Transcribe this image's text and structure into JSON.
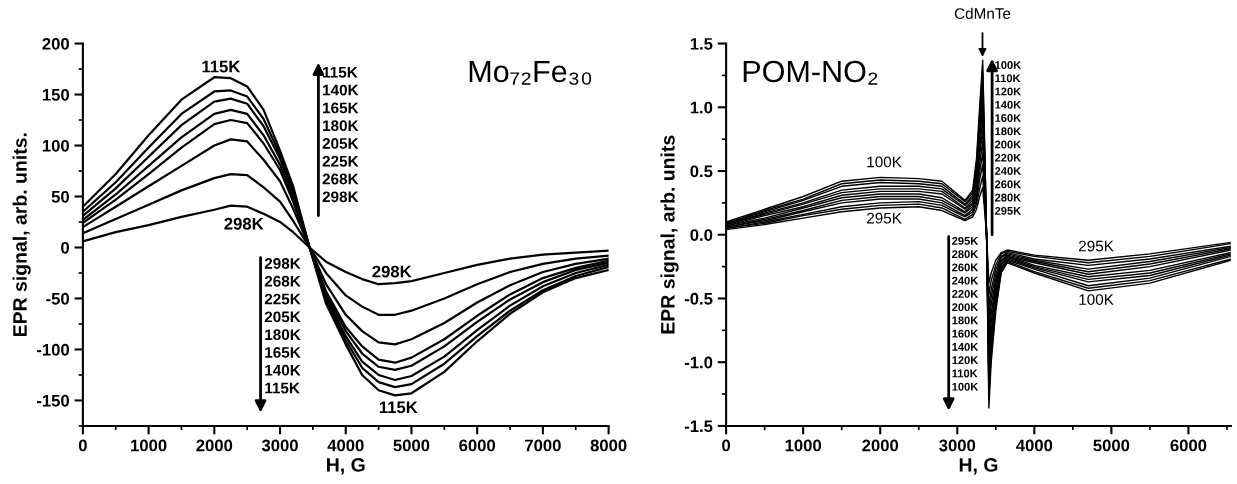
{
  "chart_data": [
    {
      "type": "line",
      "title": "Mo₇₂Fe₃₀",
      "xlabel": "H, G",
      "ylabel": "EPR signal, arb. units.",
      "x": [
        0,
        500,
        1000,
        1500,
        2000,
        2250,
        2500,
        2750,
        3000,
        3200,
        3450,
        3700,
        4000,
        4250,
        4500,
        4750,
        5000,
        5500,
        6000,
        6500,
        7000,
        7500,
        8000
      ],
      "xlim": [
        0,
        8000
      ],
      "xticks": [
        0,
        1000,
        2000,
        3000,
        4000,
        5000,
        6000,
        7000,
        8000
      ],
      "ylim": [
        -175,
        200
      ],
      "yticks": [
        -150,
        -100,
        -50,
        0,
        50,
        100,
        150,
        200
      ],
      "grid": false,
      "marker": "none",
      "line_style": "solid",
      "series": [
        {
          "color": "#000000",
          "values": [
            40,
            72,
            110,
            145,
            167,
            166,
            158,
            135,
            95,
            60,
            0,
            -55,
            -95,
            -125,
            -140,
            -145,
            -143,
            -122,
            -92,
            -65,
            -44,
            -30,
            -22
          ]
        },
        {
          "color": "#000000",
          "values": [
            35,
            64,
            98,
            131,
            153,
            154,
            148,
            126,
            91,
            56,
            0,
            -52,
            -91,
            -118,
            -132,
            -137,
            -134,
            -114,
            -87,
            -62,
            -42,
            -28,
            -19
          ]
        },
        {
          "color": "#000000",
          "values": [
            31,
            58,
            89,
            120,
            143,
            146,
            141,
            119,
            87,
            53,
            0,
            -49,
            -87,
            -112,
            -125,
            -130,
            -126,
            -107,
            -81,
            -57,
            -38,
            -25,
            -17
          ]
        },
        {
          "color": "#000000",
          "values": [
            27,
            52,
            80,
            108,
            131,
            135,
            131,
            110,
            81,
            49,
            0,
            -46,
            -82,
            -104,
            -117,
            -120,
            -116,
            -97,
            -73,
            -51,
            -34,
            -22,
            -15
          ]
        },
        {
          "color": "#000000",
          "values": [
            24,
            47,
            72,
            98,
            121,
            125,
            122,
            102,
            76,
            45,
            0,
            -43,
            -78,
            -97,
            -110,
            -113,
            -108,
            -90,
            -67,
            -46,
            -30,
            -20,
            -13
          ]
        },
        {
          "color": "#000000",
          "values": [
            20,
            40,
            60,
            80,
            100,
            106,
            104,
            86,
            65,
            38,
            0,
            -36,
            -66,
            -82,
            -93,
            -95,
            -90,
            -74,
            -54,
            -37,
            -24,
            -16,
            -11
          ]
        },
        {
          "color": "#000000",
          "values": [
            14,
            28,
            42,
            56,
            68,
            72,
            71,
            59,
            45,
            26,
            0,
            -25,
            -47,
            -58,
            -66,
            -66,
            -62,
            -50,
            -36,
            -24,
            -16,
            -11,
            -8
          ]
        },
        {
          "color": "#000000",
          "values": [
            6,
            15,
            22,
            30,
            37,
            41,
            40,
            33,
            25,
            15,
            0,
            -14,
            -24,
            -31,
            -36,
            -35,
            -33,
            -25,
            -17,
            -11,
            -7,
            -5,
            -3
          ]
        }
      ],
      "annotations": [
        "115K",
        "298K",
        "298K",
        "115K",
        "115K\n140K\n165K\n180K\n205K\n225K\n268K\n298K",
        "298K\n268K\n225K\n205K\n180K\n165K\n140K\n115K"
      ]
    },
    {
      "type": "line",
      "title": "POM-NO₂",
      "xlabel": "H, G",
      "ylabel": "EPR signal, arb. units",
      "x": [
        0,
        500,
        1000,
        1500,
        2000,
        2500,
        2800,
        3100,
        3200,
        3250,
        3290,
        3330,
        3360,
        3380,
        3410,
        3440,
        3500,
        3570,
        3650,
        4000,
        4700,
        5500,
        6550
      ],
      "xlim": [
        0,
        6550
      ],
      "xticks": [
        0,
        1000,
        2000,
        3000,
        4000,
        5000,
        6000
      ],
      "ylim": [
        -1.5,
        1.5
      ],
      "yticks": [
        {
          "value": -1.5,
          "label": "-1.5"
        },
        {
          "value": -1.0,
          "label": "-1.0"
        },
        {
          "value": -0.5,
          "label": "-0.5"
        },
        {
          "value": 0,
          "label": "0.0"
        },
        {
          "value": 0.5,
          "label": "0.5"
        },
        {
          "value": 1.0,
          "label": "1.0"
        },
        {
          "value": 1.5,
          "label": "1.5"
        }
      ],
      "grid": false,
      "marker": "none",
      "line_style": "solid",
      "series": [
        {
          "color": "#000000",
          "values": [
            0.1,
            0.2,
            0.3,
            0.42,
            0.45,
            0.44,
            0.42,
            0.27,
            0.35,
            0.6,
            1.0,
            1.37,
            0.6,
            0,
            -1.36,
            -1.0,
            -0.6,
            -0.3,
            -0.22,
            -0.3,
            -0.44,
            -0.38,
            -0.2
          ]
        },
        {
          "color": "#000000",
          "values": [
            0.09,
            0.19,
            0.28,
            0.4,
            0.43,
            0.42,
            0.4,
            0.26,
            0.33,
            0.56,
            0.94,
            1.28,
            0.56,
            0,
            -1.27,
            -0.94,
            -0.56,
            -0.29,
            -0.21,
            -0.29,
            -0.42,
            -0.36,
            -0.19
          ]
        },
        {
          "color": "#000000",
          "values": [
            0.09,
            0.18,
            0.27,
            0.38,
            0.41,
            0.4,
            0.38,
            0.24,
            0.31,
            0.53,
            0.87,
            1.19,
            0.52,
            0,
            -1.18,
            -0.87,
            -0.53,
            -0.27,
            -0.2,
            -0.27,
            -0.4,
            -0.34,
            -0.17
          ]
        },
        {
          "color": "#000000",
          "values": [
            0.08,
            0.17,
            0.25,
            0.35,
            0.38,
            0.38,
            0.36,
            0.23,
            0.29,
            0.49,
            0.81,
            1.1,
            0.48,
            0,
            -1.09,
            -0.81,
            -0.49,
            -0.26,
            -0.19,
            -0.26,
            -0.37,
            -0.32,
            -0.16
          ]
        },
        {
          "color": "#000000",
          "values": [
            0.08,
            0.16,
            0.24,
            0.33,
            0.36,
            0.36,
            0.34,
            0.21,
            0.27,
            0.45,
            0.75,
            1.01,
            0.44,
            0,
            -1.0,
            -0.75,
            -0.45,
            -0.24,
            -0.18,
            -0.25,
            -0.35,
            -0.3,
            -0.15
          ]
        },
        {
          "color": "#000000",
          "values": [
            0.07,
            0.15,
            0.22,
            0.31,
            0.34,
            0.34,
            0.32,
            0.2,
            0.25,
            0.42,
            0.68,
            0.92,
            0.4,
            0,
            -0.91,
            -0.68,
            -0.42,
            -0.23,
            -0.17,
            -0.24,
            -0.33,
            -0.28,
            -0.14
          ]
        },
        {
          "color": "#000000",
          "values": [
            0.07,
            0.13,
            0.21,
            0.29,
            0.32,
            0.32,
            0.29,
            0.18,
            0.24,
            0.38,
            0.62,
            0.82,
            0.35,
            0,
            -0.83,
            -0.62,
            -0.38,
            -0.21,
            -0.17,
            -0.22,
            -0.31,
            -0.25,
            -0.12
          ]
        },
        {
          "color": "#000000",
          "values": [
            0.06,
            0.12,
            0.19,
            0.27,
            0.3,
            0.3,
            0.27,
            0.17,
            0.22,
            0.35,
            0.55,
            0.73,
            0.31,
            0,
            -0.74,
            -0.55,
            -0.35,
            -0.2,
            -0.16,
            -0.21,
            -0.29,
            -0.23,
            -0.11
          ]
        },
        {
          "color": "#000000",
          "values": [
            0.06,
            0.11,
            0.18,
            0.25,
            0.28,
            0.28,
            0.25,
            0.15,
            0.2,
            0.31,
            0.49,
            0.64,
            0.27,
            0,
            -0.65,
            -0.49,
            -0.31,
            -0.18,
            -0.15,
            -0.2,
            -0.27,
            -0.21,
            -0.1
          ]
        },
        {
          "color": "#000000",
          "values": [
            0.05,
            0.1,
            0.16,
            0.22,
            0.25,
            0.26,
            0.23,
            0.14,
            0.18,
            0.27,
            0.43,
            0.55,
            0.23,
            0,
            -0.56,
            -0.43,
            -0.27,
            -0.17,
            -0.14,
            -0.19,
            -0.24,
            -0.19,
            -0.09
          ]
        },
        {
          "color": "#000000",
          "values": [
            0.05,
            0.09,
            0.15,
            0.2,
            0.23,
            0.24,
            0.21,
            0.12,
            0.16,
            0.24,
            0.36,
            0.46,
            0.19,
            0,
            -0.47,
            -0.36,
            -0.24,
            -0.15,
            -0.13,
            -0.17,
            -0.22,
            -0.17,
            -0.07
          ]
        },
        {
          "color": "#000000",
          "values": [
            0.04,
            0.08,
            0.13,
            0.18,
            0.21,
            0.22,
            0.19,
            0.11,
            0.14,
            0.2,
            0.3,
            0.37,
            0.15,
            0,
            -0.38,
            -0.3,
            -0.2,
            -0.14,
            -0.12,
            -0.16,
            -0.2,
            -0.15,
            -0.06
          ]
        }
      ],
      "annotations": [
        "100K",
        "295K",
        "295K",
        "100K",
        "CdMnTe",
        "100K\n110K\n120K\n140K\n160K\n180K\n200K\n220K\n240K\n260K\n280K\n295K",
        "295K\n280K\n260K\n240K\n220K\n200K\n180K\n160K\n140K\n120K\n110K\n100K"
      ]
    }
  ]
}
